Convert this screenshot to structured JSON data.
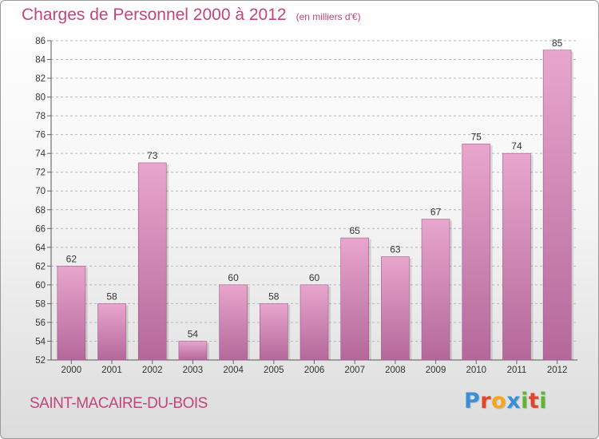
{
  "header": {
    "title": "Charges de Personnel 2000 à 2012",
    "subtitle": "(en milliers d'€)"
  },
  "footer": {
    "commune": "SAINT-MACAIRE-DU-BOIS",
    "logo": "Proxiti",
    "logo_letter_colors": [
      "#3a8fd6",
      "#e0462a",
      "#f4a71d",
      "#3a8fd6",
      "#5fb335",
      "#e0462a",
      "#5fb335"
    ]
  },
  "colors": {
    "bar_top": "#e8a6cd",
    "bar_bottom": "#b4689a",
    "title": "#c0457d",
    "grid": "#b7b7b7"
  },
  "chart_data": {
    "type": "bar",
    "title": "Charges de Personnel 2000 à 2012",
    "subtitle": "(en milliers d'€)",
    "categories": [
      "2000",
      "2001",
      "2002",
      "2003",
      "2004",
      "2005",
      "2006",
      "2007",
      "2008",
      "2009",
      "2010",
      "2011",
      "2012"
    ],
    "values": [
      62,
      58,
      73,
      54,
      60,
      58,
      60,
      65,
      63,
      67,
      75,
      74,
      85
    ],
    "ylim": [
      52,
      86
    ],
    "ytick_step": 2,
    "grid": "dashed horizontal"
  }
}
